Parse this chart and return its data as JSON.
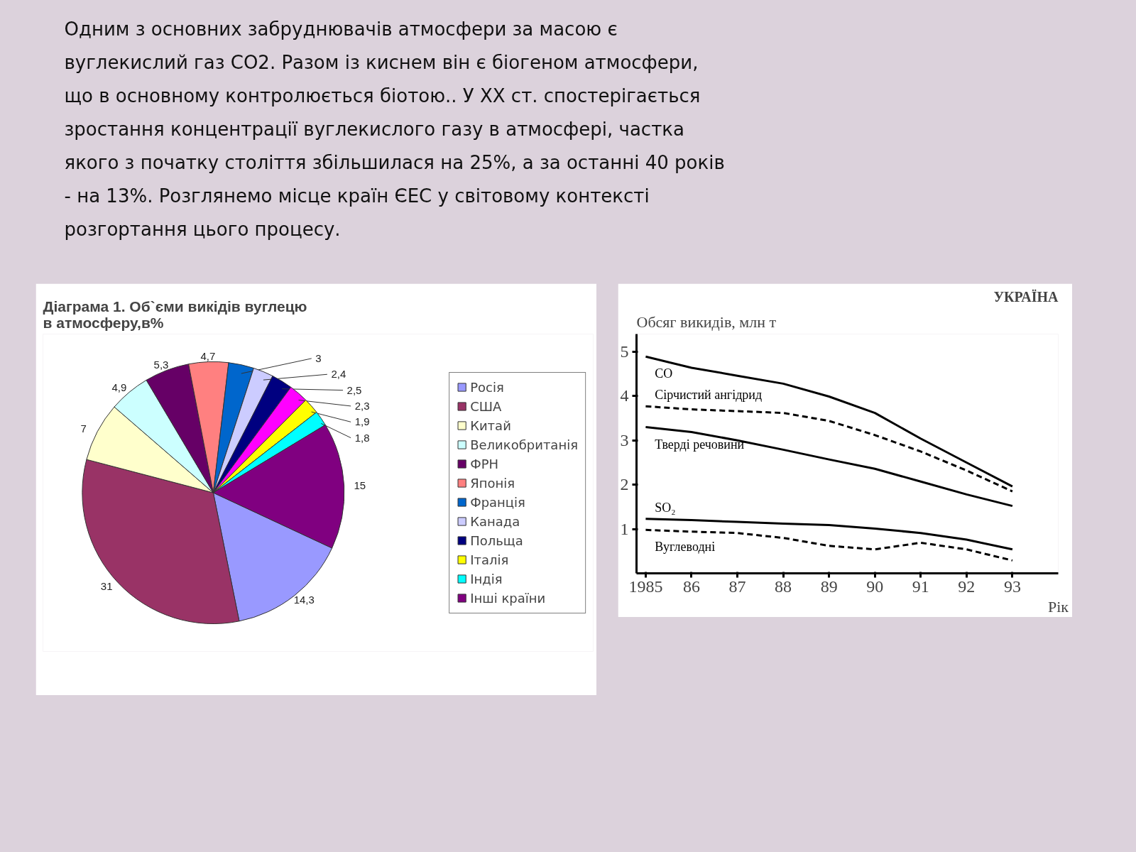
{
  "chart_data": [
    {
      "type": "other",
      "annotations": [
        "Одним з основних забруднювачів атмосфери за масою є",
        "вуглекислий газ СО2. Разом із киснем він є біогеном атмосфери,",
        "що в основному контролюється біотою.. У ХХ ст. спостерігається",
        "зростання концентрації вуглекислого газу в атмосфері, частка",
        "якого з початку століття збільшилася на 25%, а за останні 40 років",
        "- на 13%. Розглянемо місце країн ЄЕС у світовому контексті",
        "розгортання цього процесу."
      ]
    },
    {
      "type": "pie",
      "title": "Діаграма 1. Об`єми викідів вуглецю в атмосферу,в%",
      "legend": "right",
      "categories": [
        "Росія",
        "США",
        "Китай",
        "Великобританія",
        "ФРН",
        "Японія",
        "Франція",
        "Канада",
        "Польща",
        null,
        "Італія",
        "Індія",
        "Інші країни"
      ],
      "values": [
        14.3,
        31,
        7,
        4.9,
        5.3,
        4.7,
        3,
        2.4,
        2.5,
        2.3,
        1.9,
        1.8,
        15
      ],
      "value_labels": [
        "14,3",
        "31",
        "7",
        "4,9",
        "5,3",
        "4,7",
        "3",
        "2,4",
        "2,5",
        "2,3",
        "1,9",
        "1,8",
        "15"
      ],
      "colors": [
        "#9999ff",
        "#993366",
        "#ffffcc",
        "#ccffff",
        "#660066",
        "#ff8080",
        "#0066cc",
        "#ccccff",
        "#000080",
        "#ff00ff",
        "#ffff00",
        "#00ffff",
        "#800080"
      ]
    },
    {
      "type": "line",
      "title": "УКРАЇНА",
      "ylabel": "Обсяг викидів,  млн т",
      "xlabel": "Рік",
      "grid": false,
      "x": [
        1985,
        1986,
        1987,
        1988,
        1989,
        1990,
        1991,
        1992,
        1993
      ],
      "xlim": [
        1984.8,
        1994.0
      ],
      "ylim": [
        0,
        5.4
      ],
      "xticks": [
        1985,
        {
          "value": 1986,
          "label": "86"
        },
        {
          "value": 1987,
          "label": "87"
        },
        {
          "value": 1988,
          "label": "88"
        },
        {
          "value": 1989,
          "label": "89"
        },
        {
          "value": 1990,
          "label": "90"
        },
        {
          "value": 1991,
          "label": "91"
        },
        {
          "value": 1992,
          "label": "92"
        },
        {
          "value": 1993,
          "label": "93"
        }
      ],
      "yticks": [
        1,
        2,
        3,
        4,
        5
      ],
      "series": [
        {
          "name": "CO",
          "color": "#000000",
          "line_style": "solid",
          "values": [
            4.89,
            4.64,
            4.46,
            4.28,
            3.99,
            3.62,
            3.04,
            2.5,
            1.96
          ]
        },
        {
          "name": "Сірчистий ангідрид",
          "color": "#000000",
          "line_style": "dashed",
          "values": [
            3.77,
            3.7,
            3.66,
            3.62,
            3.44,
            3.12,
            2.75,
            2.32,
            1.85
          ]
        },
        {
          "name": "Тверді речовини",
          "color": "#000000",
          "line_style": "solid",
          "values": [
            3.3,
            3.19,
            3.0,
            2.79,
            2.57,
            2.36,
            2.07,
            1.78,
            1.52
          ]
        },
        {
          "name": "SO₂",
          "color": "#000000",
          "line_style": "solid",
          "values": [
            1.23,
            1.2,
            1.16,
            1.12,
            1.09,
            1.01,
            0.91,
            0.76,
            0.54
          ]
        },
        {
          "name": "Вуглеводні",
          "color": "#000000",
          "line_style": "dashed",
          "values": [
            0.98,
            0.94,
            0.91,
            0.8,
            0.62,
            0.54,
            0.69,
            0.54,
            0.29
          ]
        }
      ]
    }
  ]
}
